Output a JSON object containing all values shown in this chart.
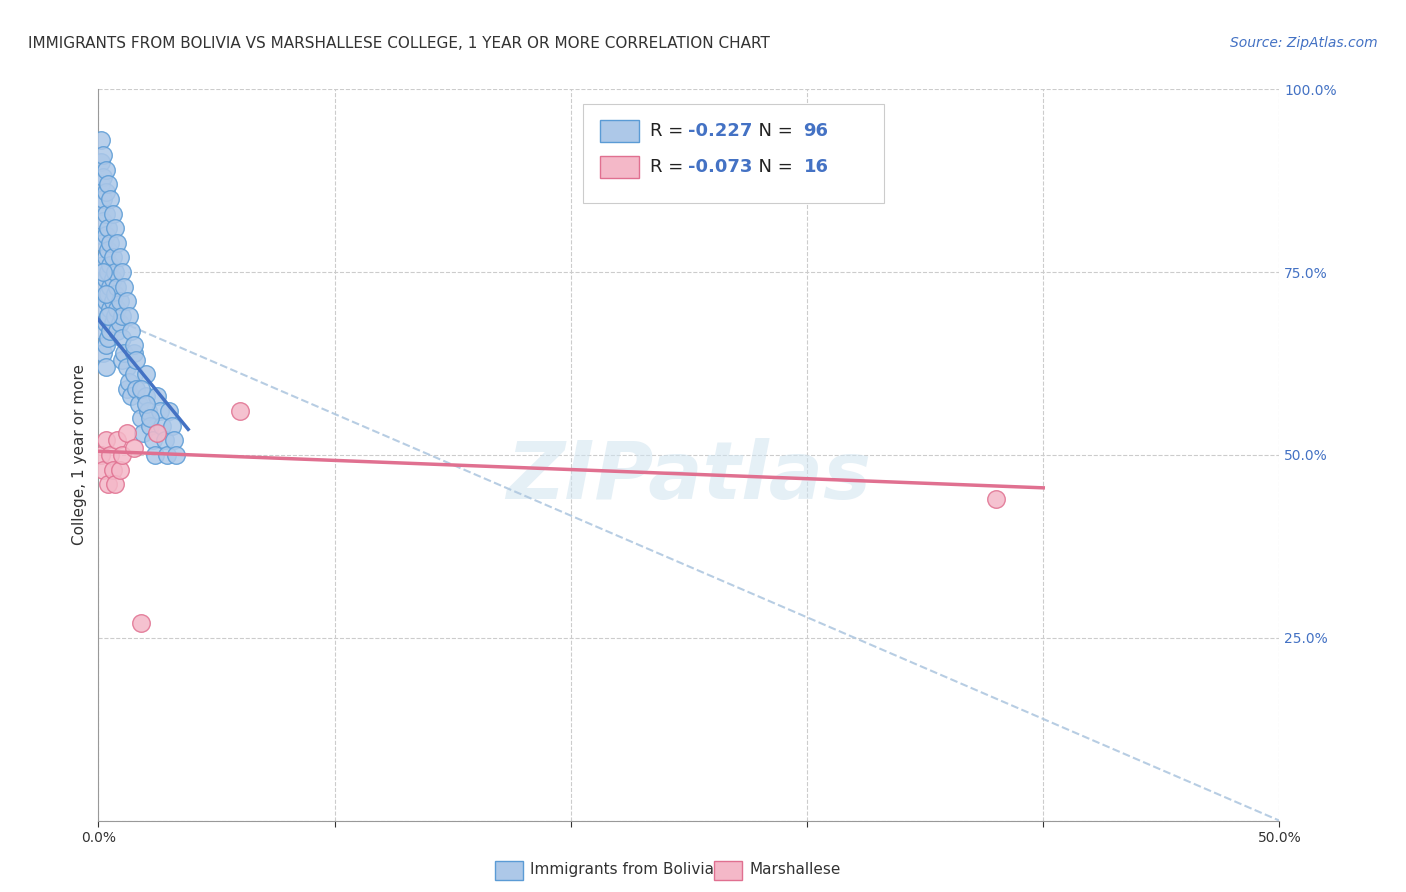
{
  "title": "IMMIGRANTS FROM BOLIVIA VS MARSHALLESE COLLEGE, 1 YEAR OR MORE CORRELATION CHART",
  "source": "Source: ZipAtlas.com",
  "ylabel": "College, 1 year or more",
  "xlim": [
    0.0,
    0.5
  ],
  "ylim": [
    0.0,
    1.0
  ],
  "xtick_positions": [
    0.0,
    0.1,
    0.2,
    0.3,
    0.4,
    0.5
  ],
  "xtick_labels": [
    "0.0%",
    "",
    "",
    "",
    "",
    "50.0%"
  ],
  "ytick_positions": [
    0.0,
    0.25,
    0.5,
    0.75,
    1.0
  ],
  "ytick_labels_right": [
    "",
    "25.0%",
    "50.0%",
    "75.0%",
    "100.0%"
  ],
  "watermark": "ZIPatlas",
  "bolivia_color": "#adc8e8",
  "bolivia_edge_color": "#5b9bd5",
  "marshallese_color": "#f4b8c8",
  "marshallese_edge_color": "#e07090",
  "bolivia_line_color": "#4472c4",
  "marshallese_line_color": "#e07090",
  "dashed_line_color": "#b0c8e0",
  "legend_label1": "Immigrants from Bolivia",
  "legend_label2": "Marshallese",
  "R1": "-0.227",
  "N1": "96",
  "R2": "-0.073",
  "N2": "16",
  "bolivia_x": [
    0.001,
    0.001,
    0.001,
    0.001,
    0.002,
    0.002,
    0.002,
    0.002,
    0.002,
    0.002,
    0.002,
    0.002,
    0.002,
    0.003,
    0.003,
    0.003,
    0.003,
    0.003,
    0.003,
    0.003,
    0.003,
    0.003,
    0.004,
    0.004,
    0.004,
    0.004,
    0.004,
    0.004,
    0.005,
    0.005,
    0.005,
    0.005,
    0.005,
    0.006,
    0.006,
    0.006,
    0.006,
    0.007,
    0.007,
    0.007,
    0.008,
    0.008,
    0.008,
    0.009,
    0.009,
    0.01,
    0.01,
    0.01,
    0.011,
    0.012,
    0.012,
    0.013,
    0.014,
    0.015,
    0.015,
    0.016,
    0.017,
    0.018,
    0.019,
    0.02,
    0.02,
    0.021,
    0.022,
    0.023,
    0.024,
    0.025,
    0.026,
    0.027,
    0.028,
    0.029,
    0.03,
    0.031,
    0.032,
    0.033,
    0.001,
    0.002,
    0.002,
    0.003,
    0.003,
    0.004,
    0.004,
    0.005,
    0.006,
    0.007,
    0.008,
    0.009,
    0.01,
    0.011,
    0.012,
    0.013,
    0.014,
    0.015,
    0.016,
    0.018,
    0.02,
    0.022
  ],
  "bolivia_y": [
    0.9,
    0.87,
    0.84,
    0.8,
    0.88,
    0.85,
    0.82,
    0.79,
    0.76,
    0.73,
    0.7,
    0.67,
    0.64,
    0.86,
    0.83,
    0.8,
    0.77,
    0.74,
    0.71,
    0.68,
    0.65,
    0.62,
    0.81,
    0.78,
    0.75,
    0.72,
    0.69,
    0.66,
    0.79,
    0.76,
    0.73,
    0.7,
    0.67,
    0.77,
    0.74,
    0.71,
    0.68,
    0.75,
    0.72,
    0.69,
    0.73,
    0.7,
    0.67,
    0.71,
    0.68,
    0.69,
    0.66,
    0.63,
    0.64,
    0.62,
    0.59,
    0.6,
    0.58,
    0.64,
    0.61,
    0.59,
    0.57,
    0.55,
    0.53,
    0.61,
    0.58,
    0.56,
    0.54,
    0.52,
    0.5,
    0.58,
    0.56,
    0.54,
    0.52,
    0.5,
    0.56,
    0.54,
    0.52,
    0.5,
    0.93,
    0.91,
    0.75,
    0.89,
    0.72,
    0.87,
    0.69,
    0.85,
    0.83,
    0.81,
    0.79,
    0.77,
    0.75,
    0.73,
    0.71,
    0.69,
    0.67,
    0.65,
    0.63,
    0.59,
    0.57,
    0.55
  ],
  "marshallese_x": [
    0.001,
    0.002,
    0.003,
    0.004,
    0.005,
    0.006,
    0.007,
    0.008,
    0.009,
    0.01,
    0.012,
    0.015,
    0.018,
    0.025,
    0.06,
    0.38
  ],
  "marshallese_y": [
    0.5,
    0.48,
    0.52,
    0.46,
    0.5,
    0.48,
    0.46,
    0.52,
    0.48,
    0.5,
    0.53,
    0.51,
    0.27,
    0.53,
    0.56,
    0.44
  ],
  "bolivia_trend_x": [
    0.0,
    0.038
  ],
  "bolivia_trend_y": [
    0.685,
    0.535
  ],
  "marshallese_trend_x": [
    0.0,
    0.4
  ],
  "marshallese_trend_y": [
    0.505,
    0.455
  ],
  "dashed_trend_x": [
    0.0,
    0.5
  ],
  "dashed_trend_y": [
    0.695,
    0.0
  ],
  "background_color": "#ffffff",
  "grid_color": "#cccccc",
  "title_fontsize": 11,
  "axis_label_fontsize": 11,
  "tick_fontsize": 10,
  "source_fontsize": 10,
  "right_tick_color": "#4472c4"
}
